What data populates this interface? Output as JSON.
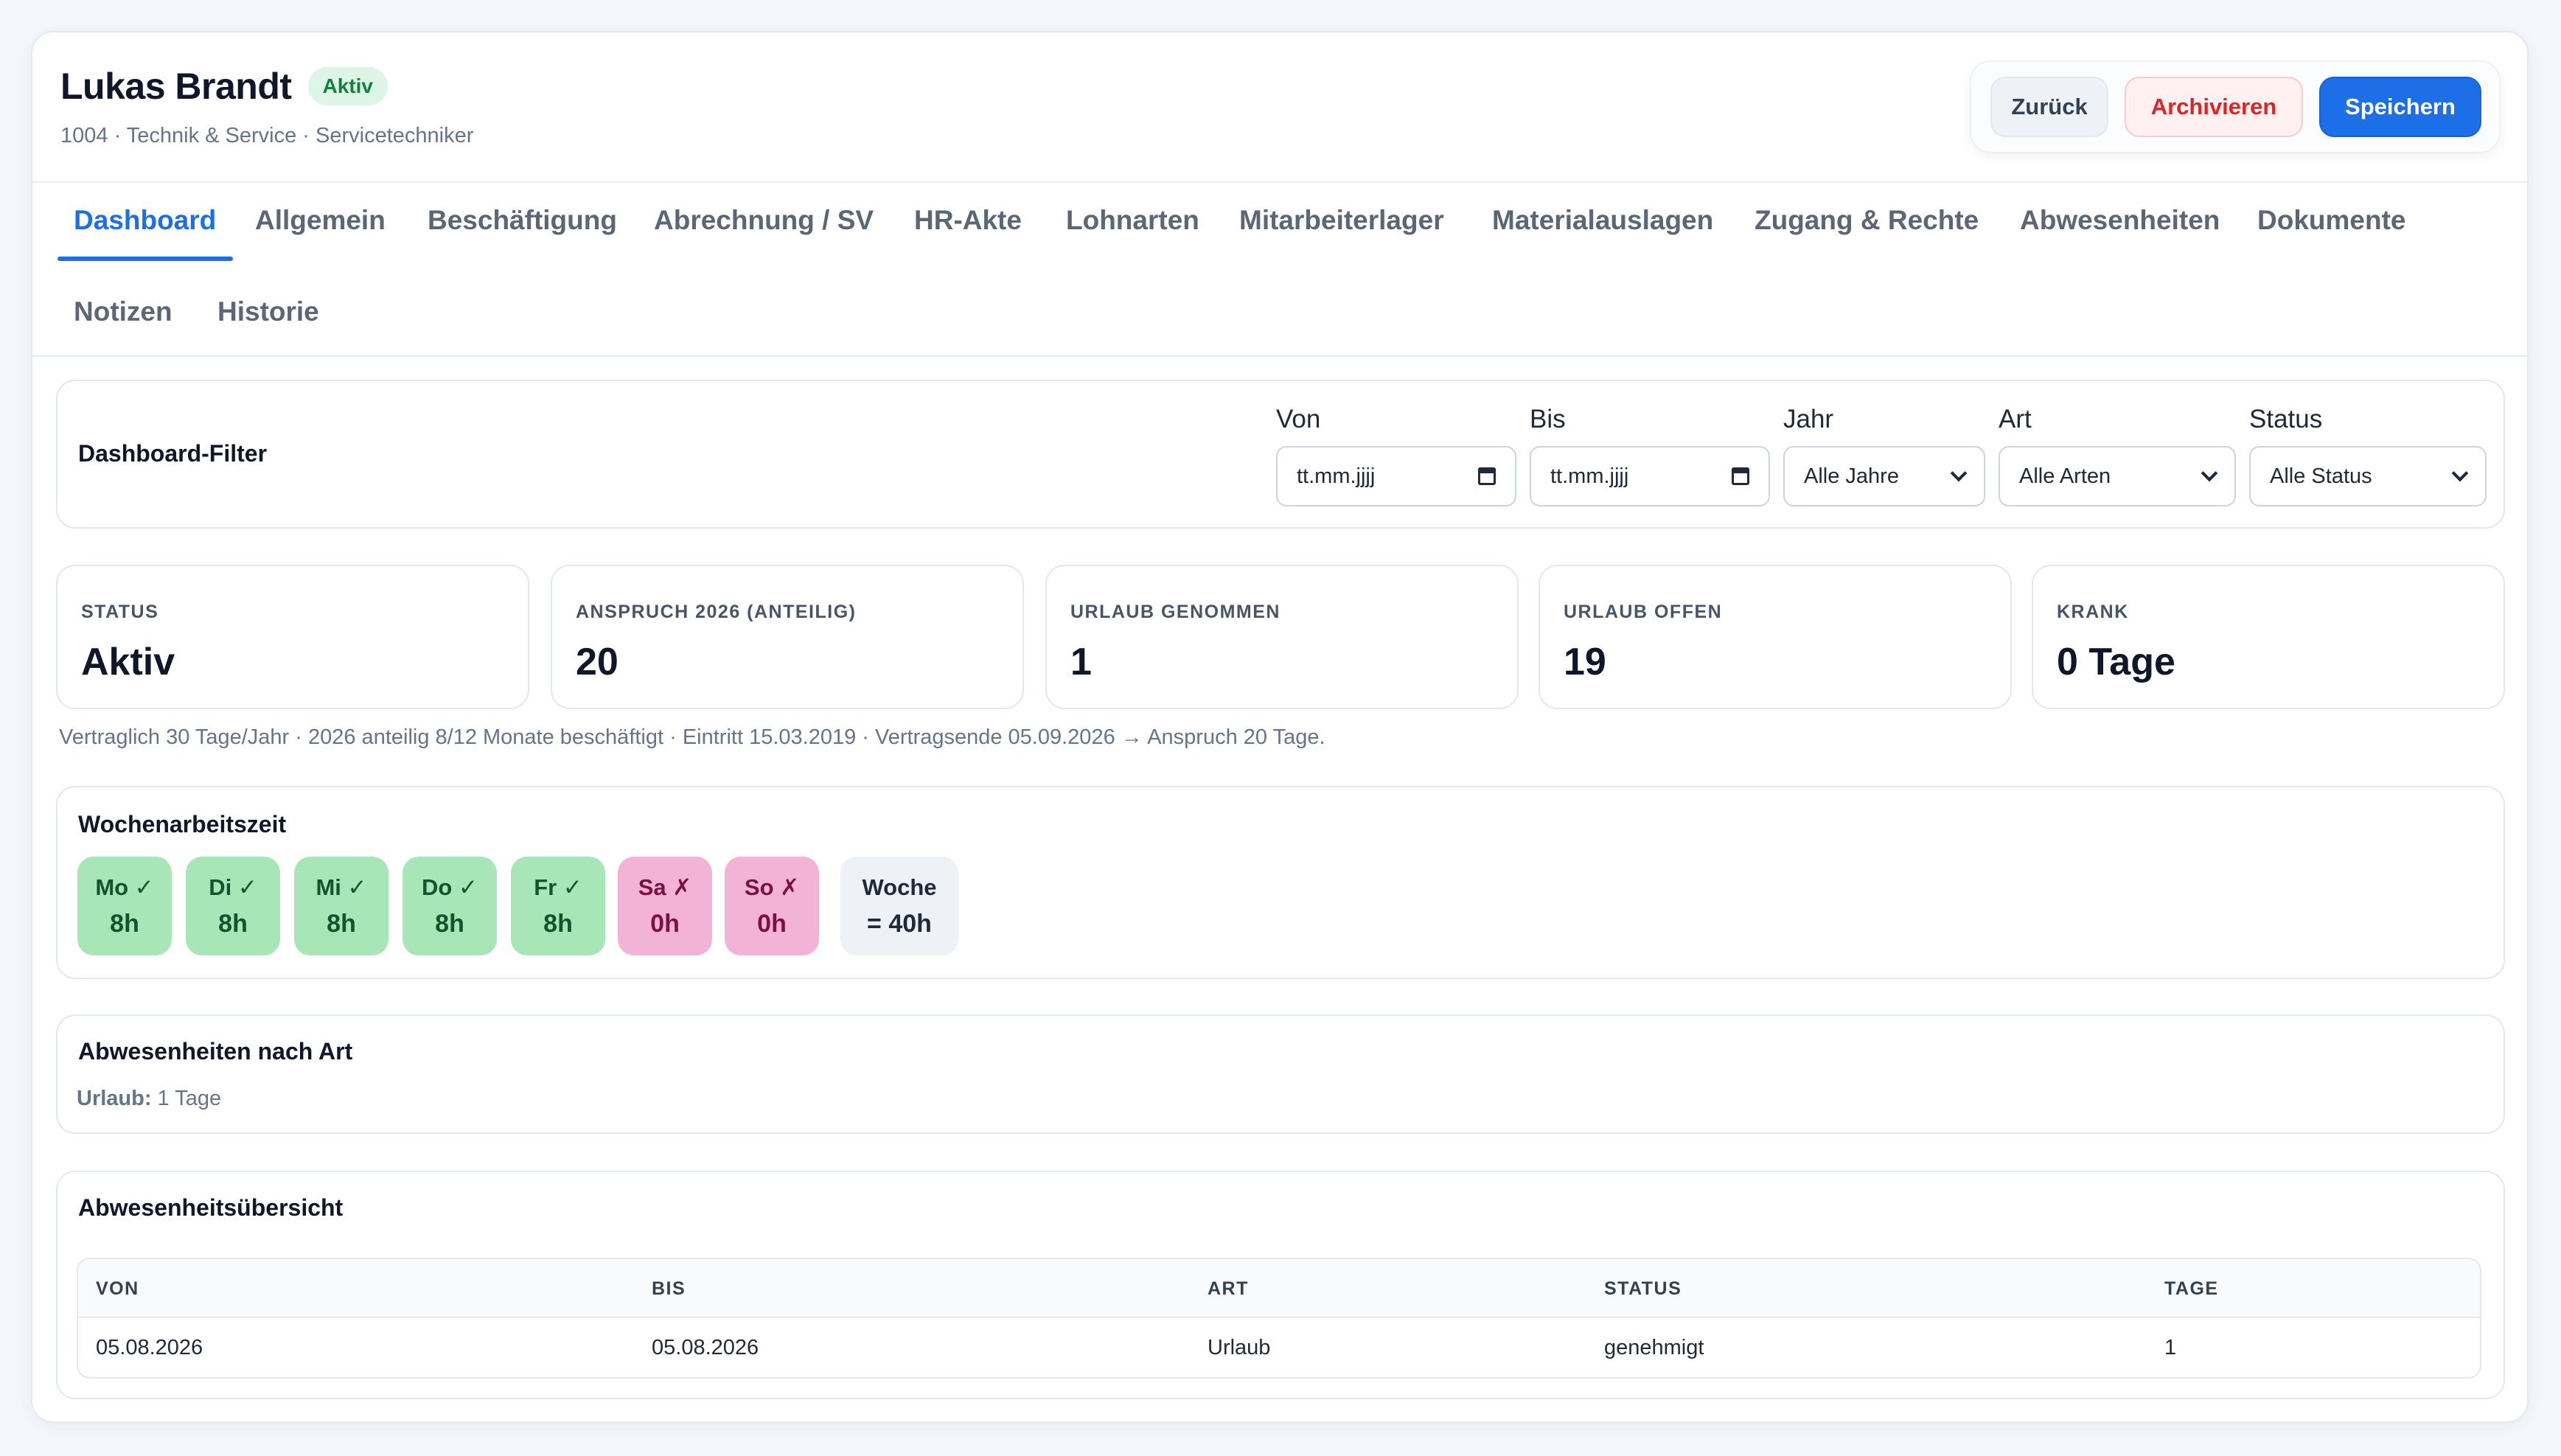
{
  "employee": {
    "name": "Lukas Brandt",
    "status_badge": "Aktiv",
    "subtitle": "1004 · Technik & Service · Servicetechniker"
  },
  "actions": {
    "back": "Zurück",
    "archive": "Archivieren",
    "save": "Speichern"
  },
  "tabs": [
    {
      "label": "Dashboard",
      "active": true
    },
    {
      "label": "Allgemein"
    },
    {
      "label": "Beschäftigung"
    },
    {
      "label": "Abrechnung / SV"
    },
    {
      "label": "HR-Akte"
    },
    {
      "label": "Lohnarten"
    },
    {
      "label": "Mitarbeiterlager"
    },
    {
      "label": "Materialauslagen"
    },
    {
      "label": "Zugang & Rechte"
    },
    {
      "label": "Abwesenheiten"
    },
    {
      "label": "Dokumente"
    },
    {
      "label": "Notizen"
    },
    {
      "label": "Historie"
    }
  ],
  "filter": {
    "title": "Dashboard-Filter",
    "von_label": "Von",
    "von_value": "tt.mm.jjjj",
    "bis_label": "Bis",
    "bis_value": "tt.mm.jjjj",
    "jahr_label": "Jahr",
    "jahr_value": "Alle Jahre",
    "art_label": "Art",
    "art_value": "Alle Arten",
    "status_label": "Status",
    "status_value": "Alle Status"
  },
  "kpis": [
    {
      "label": "Status",
      "value": "Aktiv"
    },
    {
      "label": "Anspruch 2026 (anteilig)",
      "value": "20"
    },
    {
      "label": "Urlaub genommen",
      "value": "1"
    },
    {
      "label": "Urlaub offen",
      "value": "19"
    },
    {
      "label": "Krank",
      "value": "0 Tage"
    }
  ],
  "contract_note": "Vertraglich 30 Tage/Jahr · 2026 anteilig 8/12 Monate beschäftigt · Eintritt 15.03.2019 · Vertragsende 05.09.2026 → Anspruch 20 Tage.",
  "week": {
    "title": "Wochenarbeitszeit",
    "days": [
      {
        "day": "Mo ✓",
        "hours": "8h",
        "working": true
      },
      {
        "day": "Di ✓",
        "hours": "8h",
        "working": true
      },
      {
        "day": "Mi ✓",
        "hours": "8h",
        "working": true
      },
      {
        "day": "Do ✓",
        "hours": "8h",
        "working": true
      },
      {
        "day": "Fr ✓",
        "hours": "8h",
        "working": true
      },
      {
        "day": "Sa ✗",
        "hours": "0h",
        "working": false
      },
      {
        "day": "So ✗",
        "hours": "0h",
        "working": false
      }
    ],
    "total_label": "Woche",
    "total_value": "= 40h"
  },
  "absence_by_type": {
    "title": "Abwesenheiten nach Art",
    "label": "Urlaub:",
    "value": " 1 Tage"
  },
  "absence_overview": {
    "title": "Abwesenheitsübersicht",
    "columns": [
      "Von",
      "Bis",
      "Art",
      "Status",
      "Tage"
    ],
    "rows": [
      [
        "05.08.2026",
        "05.08.2026",
        "Urlaub",
        "genehmigt",
        "1"
      ]
    ]
  },
  "colors": {
    "accent": "#1d6fe8",
    "success_badge": "#dcf5e6",
    "danger": "#dc2626",
    "work_day": "#a8e5b7",
    "off_day": "#f2b3d6"
  }
}
